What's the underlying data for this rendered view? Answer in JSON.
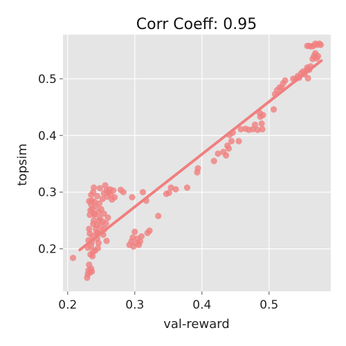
{
  "chart_data": {
    "type": "scatter",
    "title": "Corr Coeff: 0.95",
    "xlabel": "val-reward",
    "ylabel": "topsim",
    "xlim": [
      0.193,
      0.592
    ],
    "ylim": [
      0.125,
      0.578
    ],
    "xticks": [
      0.2,
      0.3,
      0.4,
      0.5
    ],
    "xtick_labels": [
      "0.2",
      "0.3",
      "0.4",
      "0.5"
    ],
    "yticks": [
      0.2,
      0.3,
      0.4,
      0.5
    ],
    "ytick_labels": [
      "0.2",
      "0.3",
      "0.4",
      "0.5"
    ],
    "grid": true,
    "colors": {
      "background": "#e5e5e5",
      "grid": "#ffffff",
      "points": "#f07f7f",
      "line": "#f07f7f"
    },
    "regression_line": {
      "x": [
        0.218,
        0.578
      ],
      "y": [
        0.198,
        0.532
      ]
    },
    "points": [
      {
        "x": 0.208,
        "y": 0.184
      },
      {
        "x": 0.229,
        "y": 0.149
      },
      {
        "x": 0.23,
        "y": 0.155
      },
      {
        "x": 0.231,
        "y": 0.162
      },
      {
        "x": 0.233,
        "y": 0.158
      },
      {
        "x": 0.235,
        "y": 0.165
      },
      {
        "x": 0.232,
        "y": 0.172
      },
      {
        "x": 0.236,
        "y": 0.16
      },
      {
        "x": 0.23,
        "y": 0.202
      },
      {
        "x": 0.231,
        "y": 0.215
      },
      {
        "x": 0.232,
        "y": 0.235
      },
      {
        "x": 0.233,
        "y": 0.227
      },
      {
        "x": 0.234,
        "y": 0.19
      },
      {
        "x": 0.235,
        "y": 0.205
      },
      {
        "x": 0.236,
        "y": 0.212
      },
      {
        "x": 0.237,
        "y": 0.222
      },
      {
        "x": 0.238,
        "y": 0.244
      },
      {
        "x": 0.239,
        "y": 0.25
      },
      {
        "x": 0.24,
        "y": 0.26
      },
      {
        "x": 0.241,
        "y": 0.197
      },
      {
        "x": 0.242,
        "y": 0.235
      },
      {
        "x": 0.243,
        "y": 0.242
      },
      {
        "x": 0.244,
        "y": 0.218
      },
      {
        "x": 0.245,
        "y": 0.228
      },
      {
        "x": 0.246,
        "y": 0.21
      },
      {
        "x": 0.247,
        "y": 0.25
      },
      {
        "x": 0.248,
        "y": 0.255
      },
      {
        "x": 0.249,
        "y": 0.24
      },
      {
        "x": 0.25,
        "y": 0.23
      },
      {
        "x": 0.252,
        "y": 0.248
      },
      {
        "x": 0.253,
        "y": 0.225
      },
      {
        "x": 0.254,
        "y": 0.262
      },
      {
        "x": 0.255,
        "y": 0.235
      },
      {
        "x": 0.257,
        "y": 0.245
      },
      {
        "x": 0.258,
        "y": 0.214
      },
      {
        "x": 0.26,
        "y": 0.255
      },
      {
        "x": 0.233,
        "y": 0.26
      },
      {
        "x": 0.234,
        "y": 0.268
      },
      {
        "x": 0.235,
        "y": 0.278
      },
      {
        "x": 0.236,
        "y": 0.285
      },
      {
        "x": 0.237,
        "y": 0.27
      },
      {
        "x": 0.238,
        "y": 0.3
      },
      {
        "x": 0.239,
        "y": 0.308
      },
      {
        "x": 0.24,
        "y": 0.283
      },
      {
        "x": 0.242,
        "y": 0.275
      },
      {
        "x": 0.244,
        "y": 0.293
      },
      {
        "x": 0.246,
        "y": 0.265
      },
      {
        "x": 0.247,
        "y": 0.28
      },
      {
        "x": 0.248,
        "y": 0.307
      },
      {
        "x": 0.25,
        "y": 0.27
      },
      {
        "x": 0.252,
        "y": 0.288
      },
      {
        "x": 0.254,
        "y": 0.298
      },
      {
        "x": 0.256,
        "y": 0.312
      },
      {
        "x": 0.258,
        "y": 0.303
      },
      {
        "x": 0.259,
        "y": 0.292
      },
      {
        "x": 0.261,
        "y": 0.3
      },
      {
        "x": 0.263,
        "y": 0.305
      },
      {
        "x": 0.264,
        "y": 0.296
      },
      {
        "x": 0.266,
        "y": 0.287
      },
      {
        "x": 0.268,
        "y": 0.303
      },
      {
        "x": 0.27,
        "y": 0.291
      },
      {
        "x": 0.232,
        "y": 0.284
      },
      {
        "x": 0.235,
        "y": 0.295
      },
      {
        "x": 0.24,
        "y": 0.262
      },
      {
        "x": 0.243,
        "y": 0.228
      },
      {
        "x": 0.245,
        "y": 0.201
      },
      {
        "x": 0.238,
        "y": 0.195
      },
      {
        "x": 0.237,
        "y": 0.187
      },
      {
        "x": 0.279,
        "y": 0.304
      },
      {
        "x": 0.283,
        "y": 0.3
      },
      {
        "x": 0.296,
        "y": 0.291
      },
      {
        "x": 0.312,
        "y": 0.3
      },
      {
        "x": 0.317,
        "y": 0.285
      },
      {
        "x": 0.292,
        "y": 0.207
      },
      {
        "x": 0.295,
        "y": 0.213
      },
      {
        "x": 0.297,
        "y": 0.22
      },
      {
        "x": 0.298,
        "y": 0.204
      },
      {
        "x": 0.3,
        "y": 0.23
      },
      {
        "x": 0.302,
        "y": 0.21
      },
      {
        "x": 0.304,
        "y": 0.218
      },
      {
        "x": 0.306,
        "y": 0.207
      },
      {
        "x": 0.308,
        "y": 0.213
      },
      {
        "x": 0.31,
        "y": 0.222
      },
      {
        "x": 0.319,
        "y": 0.228
      },
      {
        "x": 0.322,
        "y": 0.232
      },
      {
        "x": 0.335,
        "y": 0.258
      },
      {
        "x": 0.347,
        "y": 0.297
      },
      {
        "x": 0.351,
        "y": 0.299
      },
      {
        "x": 0.354,
        "y": 0.308
      },
      {
        "x": 0.361,
        "y": 0.305
      },
      {
        "x": 0.378,
        "y": 0.308
      },
      {
        "x": 0.393,
        "y": 0.335
      },
      {
        "x": 0.394,
        "y": 0.342
      },
      {
        "x": 0.418,
        "y": 0.355
      },
      {
        "x": 0.424,
        "y": 0.368
      },
      {
        "x": 0.432,
        "y": 0.371
      },
      {
        "x": 0.436,
        "y": 0.365
      },
      {
        "x": 0.438,
        "y": 0.382
      },
      {
        "x": 0.44,
        "y": 0.377
      },
      {
        "x": 0.441,
        "y": 0.401
      },
      {
        "x": 0.444,
        "y": 0.39
      },
      {
        "x": 0.446,
        "y": 0.405
      },
      {
        "x": 0.455,
        "y": 0.39
      },
      {
        "x": 0.458,
        "y": 0.411
      },
      {
        "x": 0.465,
        "y": 0.412
      },
      {
        "x": 0.47,
        "y": 0.41
      },
      {
        "x": 0.476,
        "y": 0.411
      },
      {
        "x": 0.479,
        "y": 0.419
      },
      {
        "x": 0.483,
        "y": 0.41
      },
      {
        "x": 0.486,
        "y": 0.44
      },
      {
        "x": 0.487,
        "y": 0.433
      },
      {
        "x": 0.489,
        "y": 0.421
      },
      {
        "x": 0.49,
        "y": 0.411
      },
      {
        "x": 0.491,
        "y": 0.436
      },
      {
        "x": 0.507,
        "y": 0.446
      },
      {
        "x": 0.509,
        "y": 0.473
      },
      {
        "x": 0.512,
        "y": 0.48
      },
      {
        "x": 0.516,
        "y": 0.485
      },
      {
        "x": 0.519,
        "y": 0.484
      },
      {
        "x": 0.521,
        "y": 0.492
      },
      {
        "x": 0.524,
        "y": 0.497
      },
      {
        "x": 0.536,
        "y": 0.5
      },
      {
        "x": 0.54,
        "y": 0.5
      },
      {
        "x": 0.543,
        "y": 0.505
      },
      {
        "x": 0.545,
        "y": 0.502
      },
      {
        "x": 0.548,
        "y": 0.51
      },
      {
        "x": 0.551,
        "y": 0.513
      },
      {
        "x": 0.553,
        "y": 0.508
      },
      {
        "x": 0.556,
        "y": 0.515
      },
      {
        "x": 0.557,
        "y": 0.52
      },
      {
        "x": 0.558,
        "y": 0.501
      },
      {
        "x": 0.56,
        "y": 0.516
      },
      {
        "x": 0.562,
        "y": 0.522
      },
      {
        "x": 0.565,
        "y": 0.535
      },
      {
        "x": 0.567,
        "y": 0.54
      },
      {
        "x": 0.569,
        "y": 0.545
      },
      {
        "x": 0.571,
        "y": 0.536
      },
      {
        "x": 0.573,
        "y": 0.54
      },
      {
        "x": 0.557,
        "y": 0.558
      },
      {
        "x": 0.56,
        "y": 0.558
      },
      {
        "x": 0.563,
        "y": 0.557
      },
      {
        "x": 0.566,
        "y": 0.558
      },
      {
        "x": 0.569,
        "y": 0.562
      },
      {
        "x": 0.572,
        "y": 0.56
      },
      {
        "x": 0.575,
        "y": 0.562
      },
      {
        "x": 0.577,
        "y": 0.56
      }
    ]
  }
}
